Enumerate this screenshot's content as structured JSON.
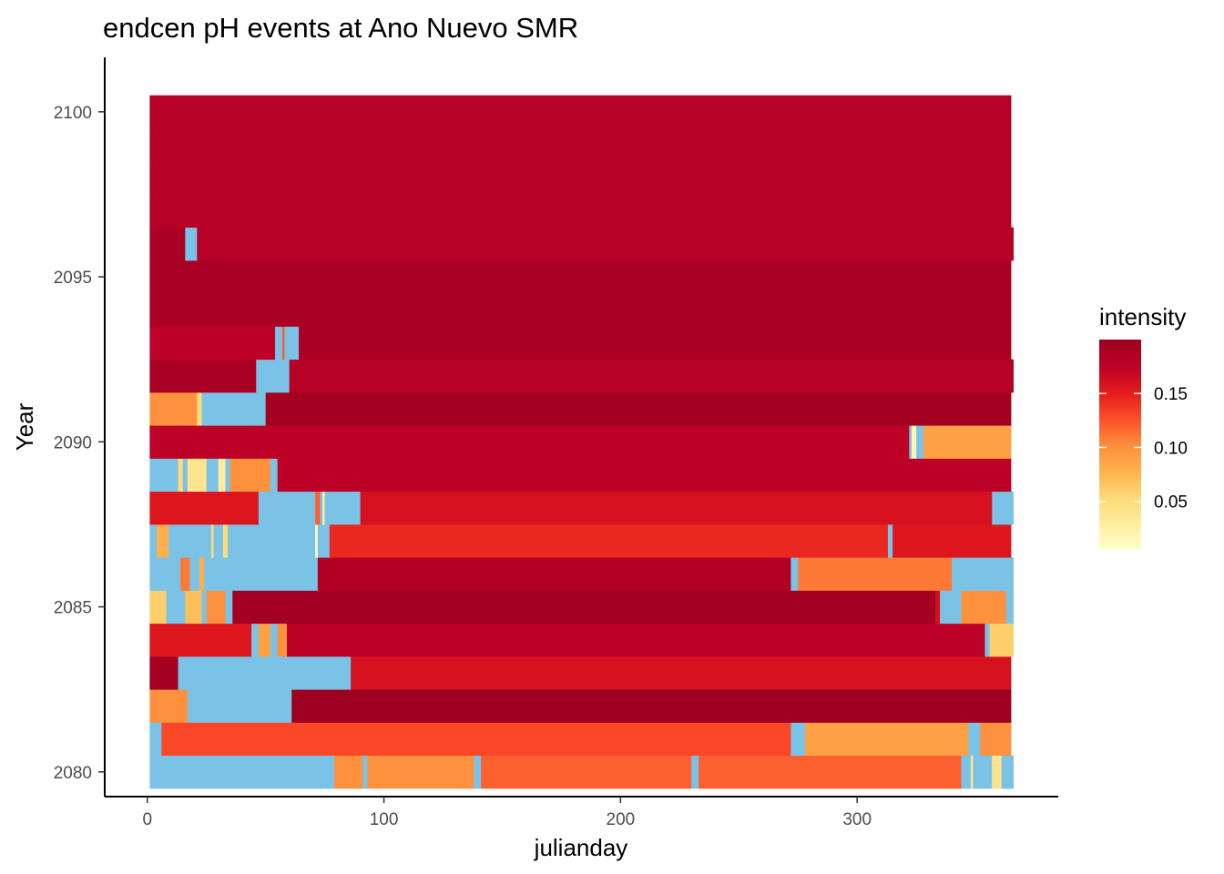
{
  "chart_data": {
    "type": "heatmap",
    "title": "endcen pH events at Ano Nuevo SMR",
    "xlabel": "julianday",
    "ylabel": "Year",
    "xlim": [
      -18,
      385
    ],
    "ylim": [
      2079.25,
      2101.65
    ],
    "x_ticks": [
      0,
      100,
      200,
      300
    ],
    "y_ticks": [
      2080,
      2085,
      2090,
      2095,
      2100
    ],
    "grid": false,
    "legend_position": "right",
    "missing_color": "#7bc3e6",
    "colorbar": {
      "title": "intensity",
      "min": 0.005,
      "max": 0.2,
      "ticks": [
        0.05,
        0.1,
        0.15
      ],
      "colors": [
        "#ffffcc",
        "#ffeda0",
        "#fed976",
        "#feb24c",
        "#fd8d3c",
        "#fc4e2a",
        "#e31a1c",
        "#bd0026",
        "#9d0021"
      ]
    },
    "rows": [
      {
        "year": 2080,
        "segments": [
          {
            "x0": 1,
            "x1": 79,
            "v": null
          },
          {
            "x0": 79,
            "x1": 91,
            "v": 0.1
          },
          {
            "x0": 91,
            "x1": 93,
            "v": null
          },
          {
            "x0": 93,
            "x1": 138,
            "v": 0.1
          },
          {
            "x0": 138,
            "x1": 141,
            "v": null
          },
          {
            "x0": 141,
            "x1": 230,
            "v": 0.12
          },
          {
            "x0": 230,
            "x1": 233,
            "v": null
          },
          {
            "x0": 233,
            "x1": 344,
            "v": 0.12
          },
          {
            "x0": 344,
            "x1": 348,
            "v": null
          },
          {
            "x0": 348,
            "x1": 349,
            "v": 0.04
          },
          {
            "x0": 349,
            "x1": 357,
            "v": null
          },
          {
            "x0": 357,
            "x1": 361,
            "v": 0.04
          },
          {
            "x0": 361,
            "x1": 366,
            "v": null
          }
        ]
      },
      {
        "year": 2081,
        "segments": [
          {
            "x0": 1,
            "x1": 6,
            "v": null
          },
          {
            "x0": 6,
            "x1": 272,
            "v": 0.13
          },
          {
            "x0": 272,
            "x1": 278,
            "v": null
          },
          {
            "x0": 278,
            "x1": 347,
            "v": 0.09
          },
          {
            "x0": 347,
            "x1": 352,
            "v": null
          },
          {
            "x0": 352,
            "x1": 365,
            "v": 0.1
          }
        ]
      },
      {
        "year": 2082,
        "segments": [
          {
            "x0": 1,
            "x1": 17,
            "v": 0.1
          },
          {
            "x0": 17,
            "x1": 61,
            "v": null
          },
          {
            "x0": 61,
            "x1": 365,
            "v": 0.205
          }
        ]
      },
      {
        "year": 2083,
        "segments": [
          {
            "x0": 1,
            "x1": 13,
            "v": 0.195
          },
          {
            "x0": 13,
            "x1": 86,
            "v": null
          },
          {
            "x0": 86,
            "x1": 365,
            "v": 0.16
          }
        ]
      },
      {
        "year": 2084,
        "segments": [
          {
            "x0": 1,
            "x1": 44,
            "v": 0.155
          },
          {
            "x0": 44,
            "x1": 47,
            "v": null
          },
          {
            "x0": 47,
            "x1": 52,
            "v": 0.09
          },
          {
            "x0": 52,
            "x1": 55,
            "v": null
          },
          {
            "x0": 55,
            "x1": 59,
            "v": 0.1
          },
          {
            "x0": 59,
            "x1": 354,
            "v": 0.175
          },
          {
            "x0": 354,
            "x1": 356,
            "v": null
          },
          {
            "x0": 356,
            "x1": 366,
            "v": 0.06
          }
        ]
      },
      {
        "year": 2085,
        "segments": [
          {
            "x0": 1,
            "x1": 8,
            "v": 0.06
          },
          {
            "x0": 8,
            "x1": 16,
            "v": null
          },
          {
            "x0": 16,
            "x1": 23,
            "v": 0.07
          },
          {
            "x0": 23,
            "x1": 25,
            "v": null
          },
          {
            "x0": 25,
            "x1": 33,
            "v": 0.1
          },
          {
            "x0": 33,
            "x1": 36,
            "v": null
          },
          {
            "x0": 36,
            "x1": 333,
            "v": 0.195
          },
          {
            "x0": 333,
            "x1": 335,
            "v": 0.16
          },
          {
            "x0": 335,
            "x1": 344,
            "v": null
          },
          {
            "x0": 344,
            "x1": 363,
            "v": 0.1
          },
          {
            "x0": 363,
            "x1": 366,
            "v": null
          }
        ]
      },
      {
        "year": 2086,
        "segments": [
          {
            "x0": 1,
            "x1": 14,
            "v": null
          },
          {
            "x0": 14,
            "x1": 18,
            "v": 0.11
          },
          {
            "x0": 18,
            "x1": 22,
            "v": null
          },
          {
            "x0": 22,
            "x1": 24,
            "v": 0.08
          },
          {
            "x0": 24,
            "x1": 72,
            "v": null
          },
          {
            "x0": 72,
            "x1": 272,
            "v": 0.185
          },
          {
            "x0": 272,
            "x1": 275,
            "v": null
          },
          {
            "x0": 275,
            "x1": 340,
            "v": 0.11
          },
          {
            "x0": 340,
            "x1": 366,
            "v": null
          }
        ]
      },
      {
        "year": 2087,
        "segments": [
          {
            "x0": 1,
            "x1": 4,
            "v": null
          },
          {
            "x0": 4,
            "x1": 9,
            "v": 0.08
          },
          {
            "x0": 9,
            "x1": 27,
            "v": null
          },
          {
            "x0": 27,
            "x1": 28,
            "v": 0.05
          },
          {
            "x0": 28,
            "x1": 32,
            "v": null
          },
          {
            "x0": 32,
            "x1": 34,
            "v": 0.05
          },
          {
            "x0": 34,
            "x1": 71,
            "v": null
          },
          {
            "x0": 71,
            "x1": 72,
            "v": 0.01
          },
          {
            "x0": 72,
            "x1": 77,
            "v": null
          },
          {
            "x0": 77,
            "x1": 313,
            "v": 0.145
          },
          {
            "x0": 313,
            "x1": 315,
            "v": null
          },
          {
            "x0": 315,
            "x1": 365,
            "v": 0.155
          }
        ]
      },
      {
        "year": 2088,
        "segments": [
          {
            "x0": 1,
            "x1": 47,
            "v": 0.155
          },
          {
            "x0": 47,
            "x1": 71,
            "v": null
          },
          {
            "x0": 71,
            "x1": 73,
            "v": 0.12
          },
          {
            "x0": 73,
            "x1": 74,
            "v": null
          },
          {
            "x0": 74,
            "x1": 75,
            "v": 0.03
          },
          {
            "x0": 75,
            "x1": 90,
            "v": null
          },
          {
            "x0": 90,
            "x1": 357,
            "v": 0.16
          },
          {
            "x0": 357,
            "x1": 366,
            "v": null
          }
        ]
      },
      {
        "year": 2089,
        "segments": [
          {
            "x0": 1,
            "x1": 13,
            "v": null
          },
          {
            "x0": 13,
            "x1": 15,
            "v": 0.05
          },
          {
            "x0": 15,
            "x1": 17,
            "v": null
          },
          {
            "x0": 17,
            "x1": 25,
            "v": 0.04
          },
          {
            "x0": 25,
            "x1": 30,
            "v": null
          },
          {
            "x0": 30,
            "x1": 33,
            "v": 0.03
          },
          {
            "x0": 33,
            "x1": 35,
            "v": null
          },
          {
            "x0": 35,
            "x1": 52,
            "v": 0.1
          },
          {
            "x0": 52,
            "x1": 55,
            "v": null
          },
          {
            "x0": 55,
            "x1": 365,
            "v": 0.175
          }
        ]
      },
      {
        "year": 2090,
        "segments": [
          {
            "x0": 1,
            "x1": 322,
            "v": 0.175
          },
          {
            "x0": 322,
            "x1": 323,
            "v": null
          },
          {
            "x0": 323,
            "x1": 325,
            "v": 0.02
          },
          {
            "x0": 325,
            "x1": 328,
            "v": null
          },
          {
            "x0": 328,
            "x1": 365,
            "v": 0.09
          }
        ]
      },
      {
        "year": 2091,
        "segments": [
          {
            "x0": 1,
            "x1": 21,
            "v": 0.1
          },
          {
            "x0": 21,
            "x1": 23,
            "v": 0.05
          },
          {
            "x0": 23,
            "x1": 50,
            "v": null
          },
          {
            "x0": 50,
            "x1": 365,
            "v": 0.195
          }
        ]
      },
      {
        "year": 2092,
        "segments": [
          {
            "x0": 1,
            "x1": 46,
            "v": 0.19
          },
          {
            "x0": 46,
            "x1": 60,
            "v": null
          },
          {
            "x0": 60,
            "x1": 366,
            "v": 0.18
          }
        ]
      },
      {
        "year": 2093,
        "segments": [
          {
            "x0": 1,
            "x1": 54,
            "v": 0.175
          },
          {
            "x0": 54,
            "x1": 57,
            "v": null
          },
          {
            "x0": 57,
            "x1": 58,
            "v": 0.12
          },
          {
            "x0": 58,
            "x1": 59,
            "v": null
          },
          {
            "x0": 59,
            "x1": 64,
            "v": null
          },
          {
            "x0": 64,
            "x1": 365,
            "v": 0.19
          }
        ]
      },
      {
        "year": 2094,
        "segments": [
          {
            "x0": 1,
            "x1": 365,
            "v": 0.19
          }
        ]
      },
      {
        "year": 2095,
        "segments": [
          {
            "x0": 1,
            "x1": 365,
            "v": 0.19
          }
        ]
      },
      {
        "year": 2096,
        "segments": [
          {
            "x0": 1,
            "x1": 16,
            "v": 0.19
          },
          {
            "x0": 16,
            "x1": 21,
            "v": null
          },
          {
            "x0": 21,
            "x1": 366,
            "v": 0.18
          }
        ]
      },
      {
        "year": 2097,
        "segments": [
          {
            "x0": 1,
            "x1": 365,
            "v": 0.18
          }
        ]
      },
      {
        "year": 2098,
        "segments": [
          {
            "x0": 1,
            "x1": 365,
            "v": 0.18
          }
        ]
      },
      {
        "year": 2099,
        "segments": [
          {
            "x0": 1,
            "x1": 365,
            "v": 0.18
          }
        ]
      },
      {
        "year": 2100,
        "segments": [
          {
            "x0": 1,
            "x1": 365,
            "v": 0.18
          }
        ]
      }
    ]
  }
}
